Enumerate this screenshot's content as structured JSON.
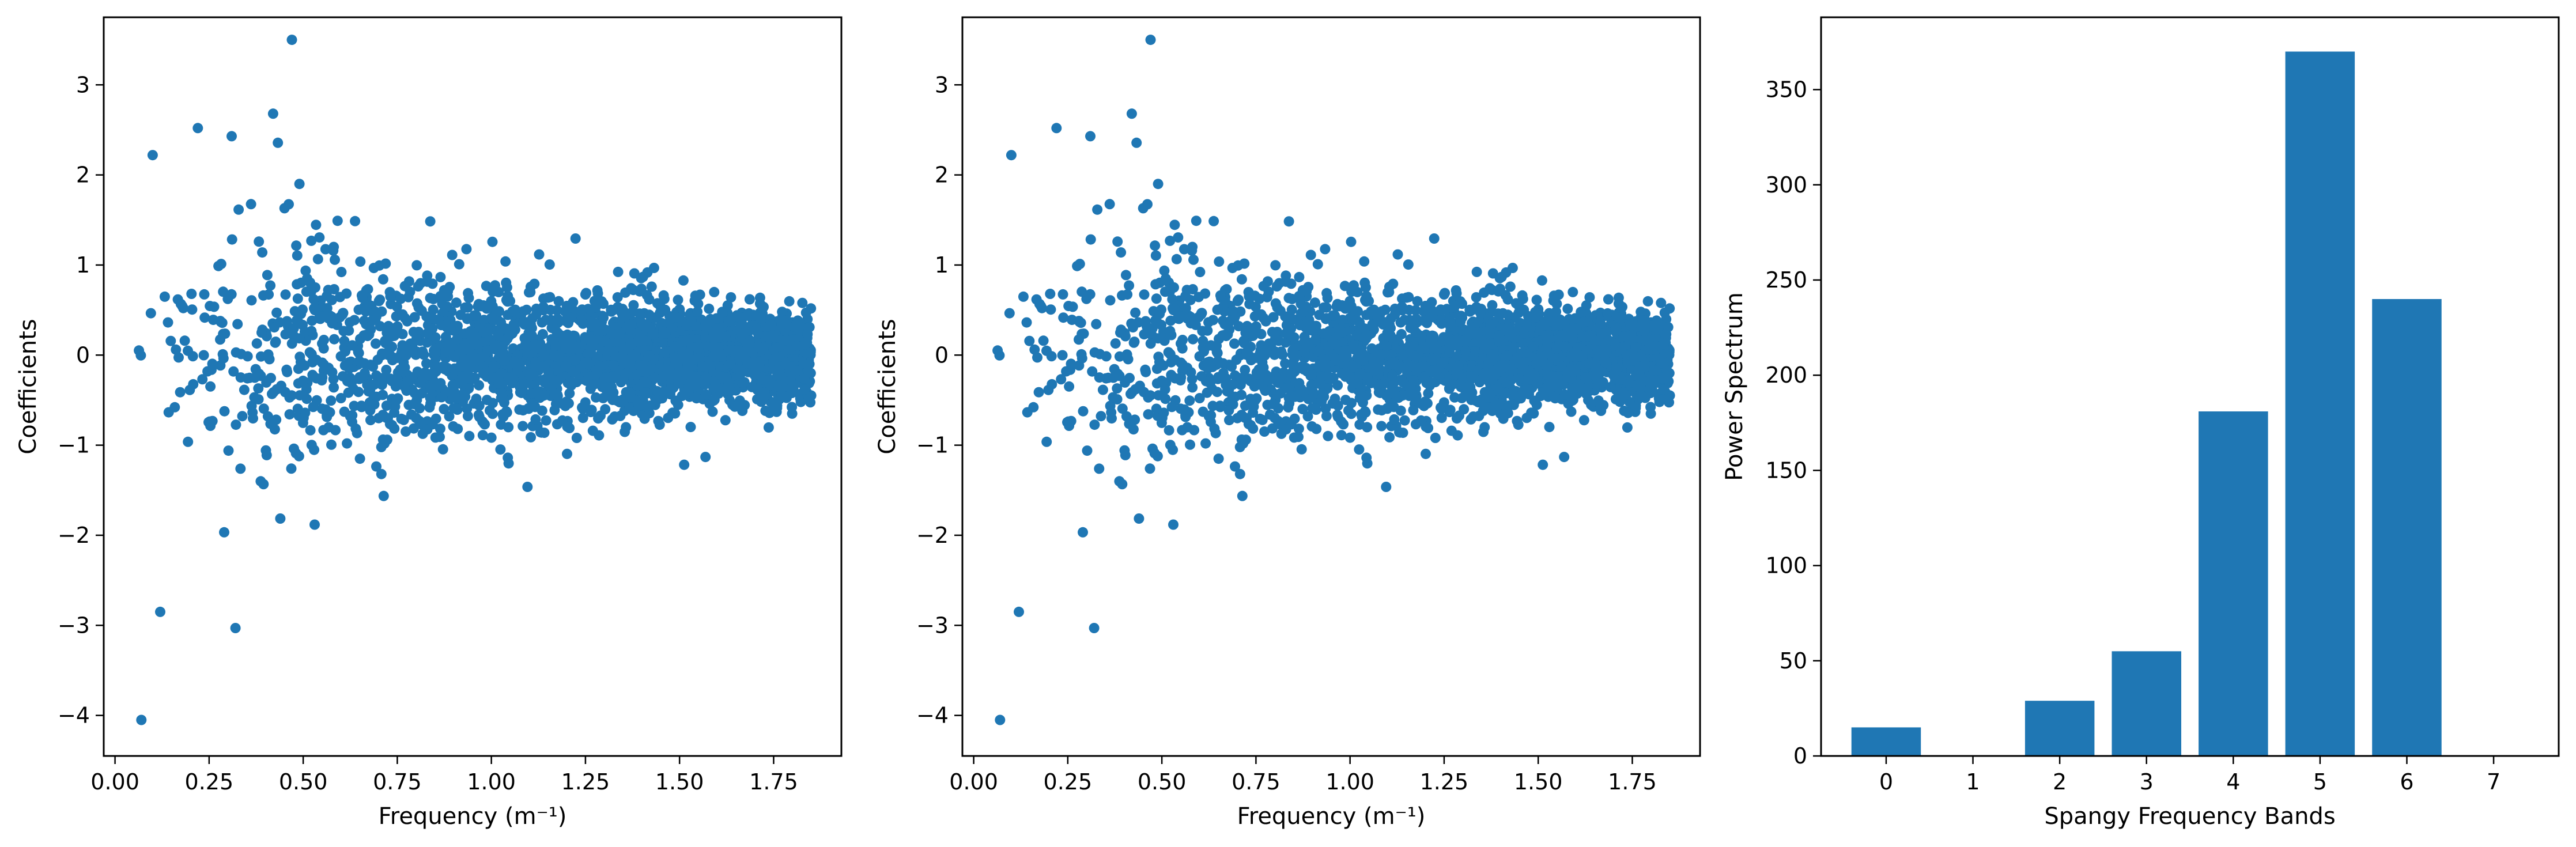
{
  "chart_data": [
    {
      "type": "scatter",
      "title": "",
      "xlabel": "Frequency (m⁻¹)",
      "ylabel": "Coefficients",
      "xlim": [
        -0.03,
        1.93
      ],
      "ylim": [
        -4.45,
        3.75
      ],
      "xticks": [
        0.0,
        0.25,
        0.5,
        0.75,
        1.0,
        1.25,
        1.5,
        1.75
      ],
      "xtick_labels": [
        "0.00",
        "0.25",
        "0.50",
        "0.75",
        "1.00",
        "1.25",
        "1.50",
        "1.75"
      ],
      "yticks": [
        -4,
        -3,
        -2,
        -1,
        0,
        1,
        2,
        3
      ],
      "ytick_labels": [
        "−4",
        "−3",
        "−2",
        "−1",
        "0",
        "1",
        "2",
        "3"
      ],
      "color": "#1f77b4",
      "x_range_of_points": [
        0.03,
        1.85
      ],
      "n_points_estimate": 2600,
      "notable_points": [
        [
          0.47,
          3.5
        ],
        [
          0.07,
          -4.05
        ],
        [
          0.32,
          -3.03
        ],
        [
          0.12,
          -2.85
        ],
        [
          0.42,
          2.68
        ],
        [
          0.22,
          2.52
        ],
        [
          0.31,
          2.43
        ],
        [
          0.1,
          2.22
        ],
        [
          0.49,
          1.9
        ]
      ],
      "envelope_note_x": [
        0.05,
        0.25,
        0.5,
        0.75,
        1.0,
        1.25,
        1.5,
        1.75
      ],
      "envelope_note_abs_y": [
        0.3,
        1.6,
        1.5,
        1.1,
        0.9,
        0.75,
        0.65,
        0.55
      ],
      "grid": false,
      "legend": "none"
    },
    {
      "type": "scatter",
      "title": "",
      "xlabel": "Frequency (m⁻¹)",
      "ylabel": "Coefficients",
      "xlim": [
        -0.03,
        1.93
      ],
      "ylim": [
        -4.45,
        3.75
      ],
      "xticks": [
        0.0,
        0.25,
        0.5,
        0.75,
        1.0,
        1.25,
        1.5,
        1.75
      ],
      "xtick_labels": [
        "0.00",
        "0.25",
        "0.50",
        "0.75",
        "1.00",
        "1.25",
        "1.50",
        "1.75"
      ],
      "yticks": [
        -4,
        -3,
        -2,
        -1,
        0,
        1,
        2,
        3
      ],
      "ytick_labels": [
        "−4",
        "−3",
        "−2",
        "−1",
        "0",
        "1",
        "2",
        "3"
      ],
      "color": "#1f77b4",
      "x_range_of_points": [
        0.03,
        1.85
      ],
      "n_points_estimate": 2600,
      "notable_points": [
        [
          0.47,
          3.5
        ],
        [
          0.07,
          -4.05
        ],
        [
          0.32,
          -3.03
        ],
        [
          0.12,
          -2.85
        ],
        [
          0.42,
          2.68
        ],
        [
          0.22,
          2.52
        ],
        [
          0.31,
          2.43
        ],
        [
          0.1,
          2.22
        ],
        [
          0.49,
          1.9
        ]
      ],
      "envelope_note_x": [
        0.05,
        0.25,
        0.5,
        0.75,
        1.0,
        1.25,
        1.5,
        1.75
      ],
      "envelope_note_abs_y": [
        0.3,
        1.6,
        1.5,
        1.1,
        0.9,
        0.75,
        0.65,
        0.55
      ],
      "grid": false,
      "legend": "none"
    },
    {
      "type": "bar",
      "title": "",
      "xlabel": "Spangy Frequency Bands",
      "ylabel": "Power Spectrum",
      "categories": [
        "0",
        "1",
        "2",
        "3",
        "4",
        "5",
        "6",
        "7"
      ],
      "values": [
        15,
        0,
        29,
        55,
        181,
        370,
        240,
        0
      ],
      "xlim": [
        -0.75,
        7.75
      ],
      "ylim": [
        0,
        388
      ],
      "yticks": [
        0,
        50,
        100,
        150,
        200,
        250,
        300,
        350
      ],
      "ytick_labels": [
        "0",
        "50",
        "100",
        "150",
        "200",
        "250",
        "300",
        "350"
      ],
      "color": "#1f77b4",
      "grid": false,
      "legend": "none"
    }
  ]
}
